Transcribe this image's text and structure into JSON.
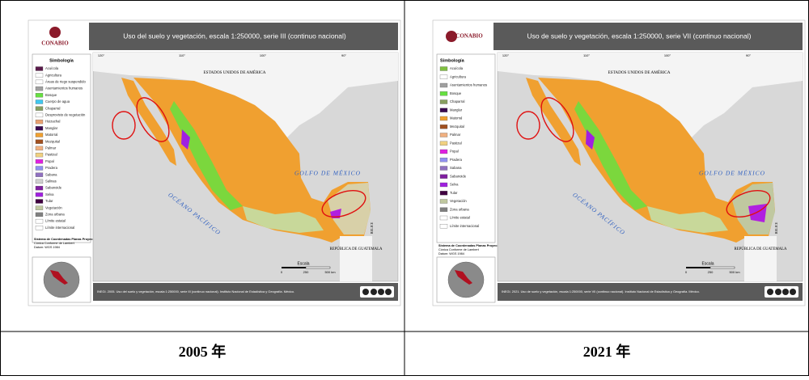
{
  "panels": [
    {
      "logo": "CONABIO",
      "title": "Uso del suelo y vegetación, escala 1:250000, serie III (continuo nacional)",
      "legend": {
        "title": "Simbología",
        "items": [
          {
            "name": "Acuícola",
            "color": "#5a1a4a"
          },
          {
            "name": "Agricultura",
            "color": "#ffffff"
          },
          {
            "name": "Áreas de riego suspendido",
            "color": "#ffffff"
          },
          {
            "name": "Asentamientos humanos",
            "color": "#a0a0a0"
          },
          {
            "name": "Bosque",
            "color": "#66e040"
          },
          {
            "name": "Cuerpo de agua",
            "color": "#40c8f0"
          },
          {
            "name": "Chaparral",
            "color": "#88a060"
          },
          {
            "name": "Desprovisto de vegetación",
            "color": "#ffffff"
          },
          {
            "name": "Huizachal",
            "color": "#e8a070"
          },
          {
            "name": "Manglar",
            "color": "#3a0a50"
          },
          {
            "name": "Matorral",
            "color": "#f0a030"
          },
          {
            "name": "Mezquital",
            "color": "#a05020"
          },
          {
            "name": "Palmar",
            "color": "#f0b080"
          },
          {
            "name": "Pastizal",
            "color": "#f0d080"
          },
          {
            "name": "Popal",
            "color": "#e020e0"
          },
          {
            "name": "Pradera",
            "color": "#9090f0"
          },
          {
            "name": "Sabana",
            "color": "#9070c0"
          },
          {
            "name": "Salinas",
            "color": "#d0d0d0"
          },
          {
            "name": "Sabanoide",
            "color": "#8020a0"
          },
          {
            "name": "Selva",
            "color": "#a020e0"
          },
          {
            "name": "Tular",
            "color": "#400040"
          },
          {
            "name": "Vegetación",
            "color": "#c0c8a0"
          },
          {
            "name": "Zona urbana",
            "color": "#808080"
          },
          {
            "name": "Límite estatal",
            "color": "#ffffff"
          },
          {
            "name": "Límite internacional",
            "color": "#ffffff"
          }
        ]
      },
      "projection": [
        "Sistema de Coordenadas Planas Proyección:",
        "Cónica Conforme de Lambert",
        "Datum: WGS 1984"
      ],
      "map": {
        "north": "ESTADOS UNIDOS DE AMÉRICA",
        "gulf": "GOLFO DE MÉXICO",
        "ocean": "OCÉANO PACÍFICO",
        "guatemala": "REPÚBLICA DE GUATEMALA",
        "belize": "BELICE",
        "longitudes": [
          "120°",
          "110°",
          "100°",
          "90°"
        ],
        "scale": {
          "title": "Escala",
          "ticks": [
            "0",
            "250",
            "500 km"
          ]
        }
      },
      "source": "INEGI. 2005. Uso del suelo y vegetación, escala 1:250000, serie III (continuo nacional). Instituto Nacional de Estadística y Geografía. México.",
      "caption": "2005 年"
    },
    {
      "logo": "CONABIO",
      "title": "Uso de suelo y vegetación, escala 1:250000, serie VII (continuo nacional)",
      "legend": {
        "title": "Simbología",
        "items": [
          {
            "name": "Acuícola",
            "color": "#80c040"
          },
          {
            "name": "Agricultura",
            "color": "#ffffff"
          },
          {
            "name": "Asentamientos humanos",
            "color": "#a0a0a0"
          },
          {
            "name": "Bosque",
            "color": "#66e040"
          },
          {
            "name": "Chaparral",
            "color": "#88a060"
          },
          {
            "name": "Manglar",
            "color": "#3a0a50"
          },
          {
            "name": "Matorral",
            "color": "#f0a030"
          },
          {
            "name": "Mezquital",
            "color": "#a05020"
          },
          {
            "name": "Palmar",
            "color": "#f0b080"
          },
          {
            "name": "Pastizal",
            "color": "#f0d080"
          },
          {
            "name": "Popal",
            "color": "#e020e0"
          },
          {
            "name": "Pradera",
            "color": "#9090f0"
          },
          {
            "name": "Sabana",
            "color": "#9070c0"
          },
          {
            "name": "Sabanoide",
            "color": "#8020a0"
          },
          {
            "name": "Selva",
            "color": "#a020e0"
          },
          {
            "name": "Tular",
            "color": "#400040"
          },
          {
            "name": "Vegetación",
            "color": "#c0c8a0"
          },
          {
            "name": "Zona urbana",
            "color": "#808080"
          },
          {
            "name": "Límite estatal",
            "color": "#ffffff"
          },
          {
            "name": "Límite internacional",
            "color": "#ffffff"
          }
        ]
      },
      "projection": [
        "Sistema de Coordenadas Planas Proyección:",
        "Cónica Conforme de Lambert",
        "Datum: WGS 1984"
      ],
      "map": {
        "north": "ESTADOS UNIDOS DE AMÉRICA",
        "gulf": "GOLFO DE MÉXICO",
        "ocean": "OCÉANO PACÍFICO",
        "guatemala": "REPÚBLICA DE GUATEMALA",
        "belize": "BELICE",
        "longitudes": [
          "120°",
          "110°",
          "100°",
          "90°"
        ],
        "scale": {
          "title": "Escala",
          "ticks": [
            "0",
            "250",
            "500 km"
          ]
        }
      },
      "source": "INEGI. 2021. Uso de suelo y vegetación, escala 1:250000, serie VII (continuo nacional). Instituto Nacional de Estadística y Geografía. México.",
      "caption": "2021 年"
    }
  ]
}
